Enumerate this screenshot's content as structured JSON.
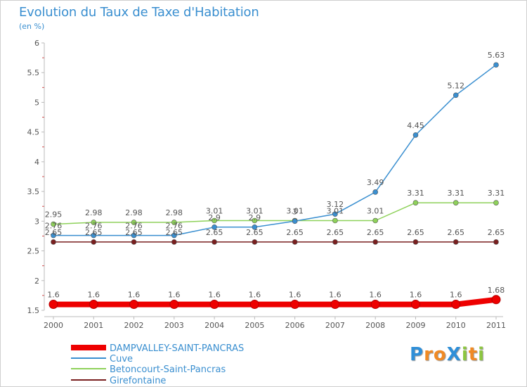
{
  "header": {
    "title": "Evolution du Taux de Taxe d'Habitation",
    "unit_label": "(en %)"
  },
  "logo": {
    "text": "ProXiti",
    "letters": [
      {
        "ch": "P",
        "color": "#2f8fd8"
      },
      {
        "ch": "r",
        "color": "#f08a24"
      },
      {
        "ch": "o",
        "color": "#f08a24"
      },
      {
        "ch": "X",
        "color": "#2f8fd8"
      },
      {
        "ch": "i",
        "color": "#8cc63f"
      },
      {
        "ch": "t",
        "color": "#f08a24"
      },
      {
        "ch": "i",
        "color": "#8cc63f"
      }
    ]
  },
  "chart_data": {
    "type": "line",
    "title": "Evolution du Taux de Taxe d'Habitation",
    "ylabel": "(en %)",
    "xlabel": "",
    "x": [
      "2000",
      "2001",
      "2002",
      "2003",
      "2004",
      "2005",
      "2006",
      "2007",
      "2008",
      "2009",
      "2010",
      "2011"
    ],
    "ylim": [
      1.5,
      6
    ],
    "yticks": [
      "1.5",
      "2",
      "2.5",
      "3",
      "3.5",
      "4",
      "4.5",
      "5",
      "5.5",
      "6"
    ],
    "grid": false,
    "legend_position": "bottom-left",
    "series": [
      {
        "name": "DAMPVALLEY-SAINT-PANCRAS",
        "color": "#ee0000",
        "emphasis": true,
        "values": [
          1.6,
          1.6,
          1.6,
          1.6,
          1.6,
          1.6,
          1.6,
          1.6,
          1.6,
          1.6,
          1.6,
          1.68
        ],
        "labels": [
          "1.6",
          "1.6",
          "1.6",
          "1.6",
          "1.6",
          "1.6",
          "1.6",
          "1.6",
          "1.6",
          "1.6",
          "1.6",
          "1.68"
        ]
      },
      {
        "name": "Cuve",
        "color": "#3a8fd0",
        "emphasis": false,
        "values": [
          2.76,
          2.76,
          2.76,
          2.76,
          2.9,
          2.9,
          3.0,
          3.12,
          3.49,
          4.45,
          5.12,
          5.63
        ],
        "labels": [
          "2.76",
          "2.76",
          "2.76",
          "2.76",
          "2.9",
          "2.9",
          "3",
          "3.12",
          "3.49",
          "4.45",
          "5.12",
          "5.63"
        ]
      },
      {
        "name": "Betoncourt-Saint-Pancras",
        "color": "#8ed15a",
        "emphasis": false,
        "values": [
          2.95,
          2.98,
          2.98,
          2.98,
          3.01,
          3.01,
          3.01,
          3.01,
          3.01,
          3.31,
          3.31,
          3.31
        ],
        "labels": [
          "2.95",
          "2.98",
          "2.98",
          "2.98",
          "3.01",
          "3.01",
          "3.01",
          "3.01",
          "3.01",
          "3.31",
          "3.31",
          "3.31"
        ]
      },
      {
        "name": "Girefontaine",
        "color": "#7a1f1f",
        "emphasis": false,
        "values": [
          2.65,
          2.65,
          2.65,
          2.65,
          2.65,
          2.65,
          2.65,
          2.65,
          2.65,
          2.65,
          2.65,
          2.65
        ],
        "labels": [
          "2.65",
          "2.65",
          "2.65",
          "2.65",
          "2.65",
          "2.65",
          "2.65",
          "2.65",
          "2.65",
          "2.65",
          "2.65",
          "2.65"
        ]
      }
    ]
  }
}
